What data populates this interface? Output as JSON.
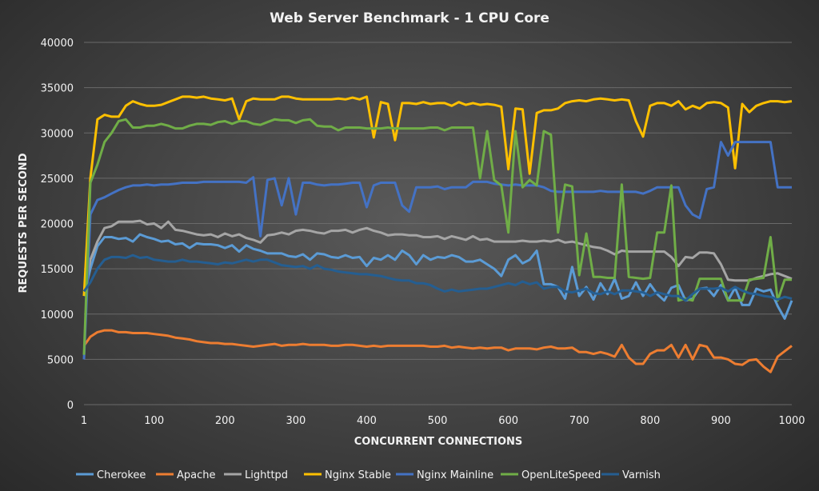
{
  "chart_data": {
    "type": "line",
    "title": "Web Server Benchmark - 1 CPU Core",
    "xlabel": "CONCURRENT CONNECTIONS",
    "ylabel": "REQUESTS PER SECOND",
    "xlim": [
      1,
      1000
    ],
    "ylim": [
      0,
      40000
    ],
    "x_ticks": [
      1,
      100,
      200,
      300,
      400,
      500,
      600,
      700,
      800,
      900,
      1000
    ],
    "y_ticks": [
      0,
      5000,
      10000,
      15000,
      20000,
      25000,
      30000,
      35000,
      40000
    ],
    "grid": true,
    "legend": "bottom",
    "x": [
      1,
      10,
      20,
      30,
      40,
      50,
      60,
      70,
      80,
      90,
      100,
      110,
      120,
      130,
      140,
      150,
      160,
      170,
      180,
      190,
      200,
      210,
      220,
      230,
      240,
      250,
      260,
      270,
      280,
      290,
      300,
      310,
      320,
      330,
      340,
      350,
      360,
      370,
      380,
      390,
      400,
      410,
      420,
      430,
      440,
      450,
      460,
      470,
      480,
      490,
      500,
      510,
      520,
      530,
      540,
      550,
      560,
      570,
      580,
      590,
      600,
      610,
      620,
      630,
      640,
      650,
      660,
      670,
      680,
      690,
      700,
      710,
      720,
      730,
      740,
      750,
      760,
      770,
      780,
      790,
      800,
      810,
      820,
      830,
      840,
      850,
      860,
      870,
      880,
      890,
      900,
      910,
      920,
      930,
      940,
      950,
      960,
      970,
      980,
      990,
      1000
    ],
    "series": [
      {
        "name": "Cherokee",
        "color": "#5b9bd5",
        "values": [
          12000,
          15000,
          17500,
          18500,
          18500,
          18300,
          18400,
          18000,
          18800,
          18500,
          18300,
          18000,
          18100,
          17700,
          17800,
          17300,
          17800,
          17700,
          17700,
          17600,
          17300,
          17600,
          16900,
          17600,
          17200,
          17000,
          16700,
          16700,
          16700,
          16400,
          16300,
          16600,
          16000,
          16700,
          16600,
          16300,
          16200,
          16500,
          16200,
          16300,
          15300,
          16200,
          16000,
          16500,
          16000,
          17000,
          16500,
          15500,
          16500,
          16000,
          16300,
          16200,
          16500,
          16300,
          15800,
          15800,
          16000,
          15500,
          15000,
          14200,
          16000,
          16500,
          15600,
          16000,
          17000,
          13300,
          13300,
          13000,
          11700,
          15200,
          12000,
          13000,
          11600,
          13400,
          12200,
          13900,
          11700,
          12000,
          13500,
          12000,
          13300,
          12200,
          11500,
          12900,
          13200,
          11500,
          11700,
          12800,
          12900,
          12000,
          13200,
          11500,
          12900,
          11000,
          11000,
          12800,
          12500,
          12700,
          10900,
          9500,
          11500
        ]
      },
      {
        "name": "Apache",
        "color": "#ed7d31",
        "values": [
          6500,
          7500,
          8000,
          8200,
          8200,
          8000,
          8000,
          7900,
          7900,
          7900,
          7800,
          7700,
          7600,
          7400,
          7300,
          7200,
          7000,
          6900,
          6800,
          6800,
          6700,
          6700,
          6600,
          6500,
          6400,
          6500,
          6600,
          6700,
          6500,
          6600,
          6600,
          6700,
          6600,
          6600,
          6600,
          6500,
          6500,
          6600,
          6600,
          6500,
          6400,
          6500,
          6400,
          6500,
          6500,
          6500,
          6500,
          6500,
          6500,
          6400,
          6400,
          6500,
          6300,
          6400,
          6300,
          6200,
          6300,
          6200,
          6300,
          6300,
          6000,
          6200,
          6200,
          6200,
          6100,
          6300,
          6400,
          6200,
          6200,
          6300,
          5800,
          5800,
          5600,
          5800,
          5600,
          5300,
          6600,
          5200,
          4500,
          4500,
          5600,
          6000,
          6000,
          6600,
          5200,
          6600,
          5000,
          6600,
          6400,
          5200,
          5200,
          5000,
          4500,
          4400,
          4900,
          5000,
          4200,
          3600,
          5300,
          5900,
          6500
        ]
      },
      {
        "name": "Lighttpd",
        "color": "#a5a5a5",
        "values": [
          12000,
          16000,
          18000,
          19500,
          19700,
          20200,
          20200,
          20200,
          20300,
          19900,
          20000,
          19500,
          20200,
          19300,
          19200,
          19000,
          18800,
          18700,
          18800,
          18500,
          18900,
          18600,
          18800,
          18400,
          18200,
          17900,
          18700,
          18800,
          19000,
          18800,
          19200,
          19300,
          19200,
          19000,
          18900,
          19200,
          19200,
          19300,
          19000,
          19300,
          19500,
          19200,
          19000,
          18700,
          18800,
          18800,
          18700,
          18700,
          18500,
          18500,
          18600,
          18300,
          18600,
          18400,
          18200,
          18600,
          18200,
          18300,
          18000,
          18000,
          18000,
          18000,
          18100,
          18000,
          18000,
          18100,
          18000,
          18200,
          17900,
          18000,
          17800,
          17600,
          17400,
          17300,
          17000,
          16600,
          17000,
          16900,
          16900,
          16900,
          16900,
          16900,
          16900,
          16300,
          15300,
          16300,
          16200,
          16800,
          16800,
          16700,
          15500,
          13800,
          13700,
          13700,
          13700,
          14000,
          14200,
          14400,
          14500,
          14200,
          13900
        ]
      },
      {
        "name": "Nginx Stable",
        "color": "#ffc000",
        "values": [
          12000,
          25000,
          31500,
          32000,
          31800,
          31800,
          33000,
          33500,
          33200,
          33000,
          33000,
          33100,
          33400,
          33700,
          34000,
          34000,
          33900,
          34000,
          33800,
          33700,
          33600,
          33800,
          31500,
          33500,
          33800,
          33700,
          33700,
          33700,
          34000,
          34000,
          33800,
          33700,
          33700,
          33700,
          33700,
          33700,
          33800,
          33700,
          33900,
          33700,
          34000,
          29500,
          33400,
          33200,
          29200,
          33300,
          33300,
          33200,
          33400,
          33200,
          33300,
          33300,
          33000,
          33400,
          33100,
          33300,
          33100,
          33200,
          33100,
          32900,
          26000,
          32700,
          32600,
          25500,
          32200,
          32500,
          32500,
          32700,
          33300,
          33500,
          33600,
          33500,
          33700,
          33800,
          33700,
          33600,
          33700,
          33600,
          31300,
          29600,
          33000,
          33300,
          33300,
          33000,
          33500,
          32600,
          33000,
          32700,
          33300,
          33400,
          33300,
          32800,
          26100,
          33200,
          32300,
          33000,
          33300,
          33500,
          33500,
          33400,
          33500
        ]
      },
      {
        "name": "Nginx Mainline",
        "color": "#4472c4",
        "values": [
          5000,
          21000,
          22600,
          22900,
          23300,
          23700,
          24000,
          24200,
          24200,
          24300,
          24200,
          24300,
          24300,
          24400,
          24500,
          24500,
          24500,
          24600,
          24600,
          24600,
          24600,
          24600,
          24600,
          24500,
          25100,
          18600,
          24800,
          25000,
          22000,
          25000,
          21000,
          24500,
          24500,
          24300,
          24200,
          24300,
          24300,
          24400,
          24500,
          24500,
          21800,
          24200,
          24500,
          24500,
          24500,
          22000,
          21300,
          24000,
          24000,
          24000,
          24100,
          23800,
          24000,
          24000,
          24000,
          24600,
          24600,
          24600,
          24400,
          24300,
          24200,
          24300,
          24200,
          24200,
          24200,
          24000,
          23600,
          23500,
          23500,
          23500,
          23500,
          23500,
          23500,
          23600,
          23500,
          23500,
          23500,
          23500,
          23500,
          23300,
          23600,
          24000,
          24000,
          24000,
          24000,
          22000,
          21000,
          20600,
          23800,
          24000,
          29000,
          27500,
          29000,
          29000,
          29000,
          29000,
          29000,
          29000,
          24000,
          24000,
          24000
        ]
      },
      {
        "name": "OpenLiteSpeed",
        "color": "#70ad47",
        "values": [
          5500,
          24500,
          26500,
          29000,
          30000,
          31300,
          31500,
          30600,
          30600,
          30800,
          30800,
          31000,
          30800,
          30500,
          30500,
          30800,
          31000,
          31000,
          30900,
          31200,
          31300,
          31000,
          31300,
          31300,
          31000,
          30900,
          31200,
          31500,
          31400,
          31400,
          31100,
          31400,
          31500,
          30800,
          30700,
          30700,
          30300,
          30600,
          30600,
          30600,
          30500,
          30500,
          30500,
          30600,
          30500,
          30500,
          30500,
          30500,
          30500,
          30600,
          30600,
          30300,
          30600,
          30600,
          30600,
          30600,
          25000,
          30200,
          24800,
          24200,
          19000,
          30200,
          24000,
          24800,
          24200,
          30200,
          29800,
          19000,
          24300,
          24100,
          14300,
          18900,
          14100,
          14100,
          14000,
          14000,
          24300,
          14100,
          14000,
          13900,
          14000,
          19000,
          19000,
          24200,
          11500,
          11700,
          11500,
          13900,
          13900,
          13900,
          13900,
          11500,
          11500,
          11500,
          13800,
          13900,
          14000,
          18500,
          11500,
          13800,
          13800
        ]
      },
      {
        "name": "Varnish",
        "color": "#255e91",
        "values": [
          12500,
          13500,
          15000,
          16000,
          16300,
          16300,
          16200,
          16500,
          16200,
          16300,
          16000,
          15900,
          15800,
          15800,
          16000,
          15800,
          15800,
          15700,
          15600,
          15500,
          15700,
          15600,
          15800,
          16000,
          15800,
          16000,
          16000,
          15700,
          15400,
          15300,
          15200,
          15300,
          15000,
          15400,
          15000,
          14900,
          14700,
          14600,
          14500,
          14400,
          14400,
          14300,
          14200,
          14000,
          13800,
          13700,
          13700,
          13400,
          13400,
          13200,
          12800,
          12500,
          12700,
          12500,
          12600,
          12700,
          12800,
          12800,
          13000,
          13200,
          13400,
          13200,
          13600,
          13300,
          13500,
          12800,
          13000,
          13000,
          12500,
          12400,
          12600,
          12800,
          12300,
          12200,
          12500,
          12200,
          12600,
          12600,
          12500,
          12400,
          12000,
          12400,
          12200,
          12000,
          12000,
          11500,
          12200,
          12800,
          12800,
          12800,
          12900,
          12500,
          13000,
          12600,
          12300,
          12200,
          12000,
          11900,
          11600,
          11900,
          11700
        ]
      }
    ]
  }
}
